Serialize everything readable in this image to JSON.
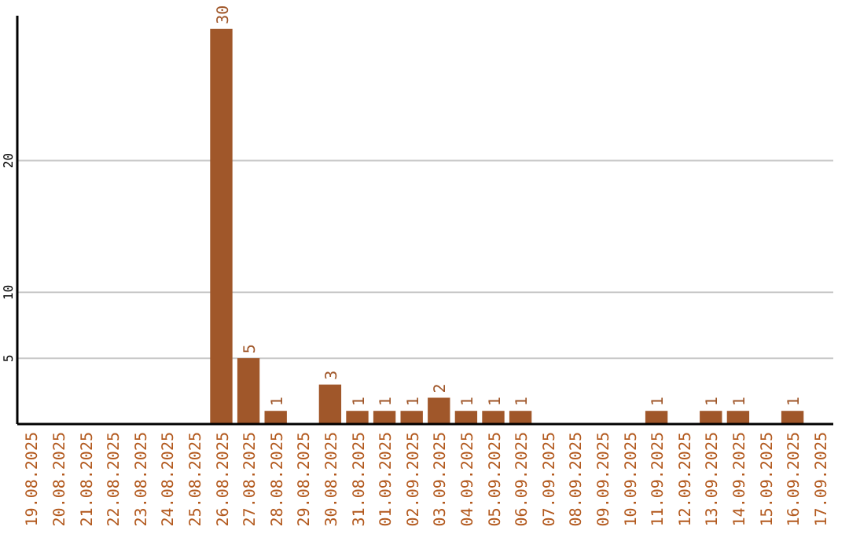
{
  "chart_data": {
    "type": "bar",
    "categories": [
      "19.08.2025",
      "20.08.2025",
      "21.08.2025",
      "22.08.2025",
      "23.08.2025",
      "24.08.2025",
      "25.08.2025",
      "26.08.2025",
      "27.08.2025",
      "28.08.2025",
      "29.08.2025",
      "30.08.2025",
      "31.08.2025",
      "01.09.2025",
      "02.09.2025",
      "03.09.2025",
      "04.09.2025",
      "05.09.2025",
      "06.09.2025",
      "07.09.2025",
      "08.09.2025",
      "09.09.2025",
      "10.09.2025",
      "11.09.2025",
      "12.09.2025",
      "13.09.2025",
      "14.09.2025",
      "15.09.2025",
      "16.09.2025",
      "17.09.2025"
    ],
    "values": [
      0,
      0,
      0,
      0,
      0,
      0,
      0,
      30,
      5,
      1,
      0,
      3,
      1,
      1,
      1,
      2,
      1,
      1,
      1,
      0,
      0,
      0,
      0,
      1,
      0,
      1,
      1,
      0,
      1,
      0
    ],
    "value_labels": [
      null,
      null,
      null,
      null,
      null,
      null,
      null,
      "30",
      "5",
      "1",
      null,
      "3",
      "1",
      "1",
      "1",
      "2",
      "1",
      "1",
      "1",
      null,
      null,
      null,
      null,
      "1",
      null,
      "1",
      "1",
      null,
      "1",
      null
    ],
    "color": "#a0572a",
    "ylim": [
      0,
      31
    ],
    "yticks": [
      5,
      10,
      20
    ],
    "grid": "y"
  }
}
